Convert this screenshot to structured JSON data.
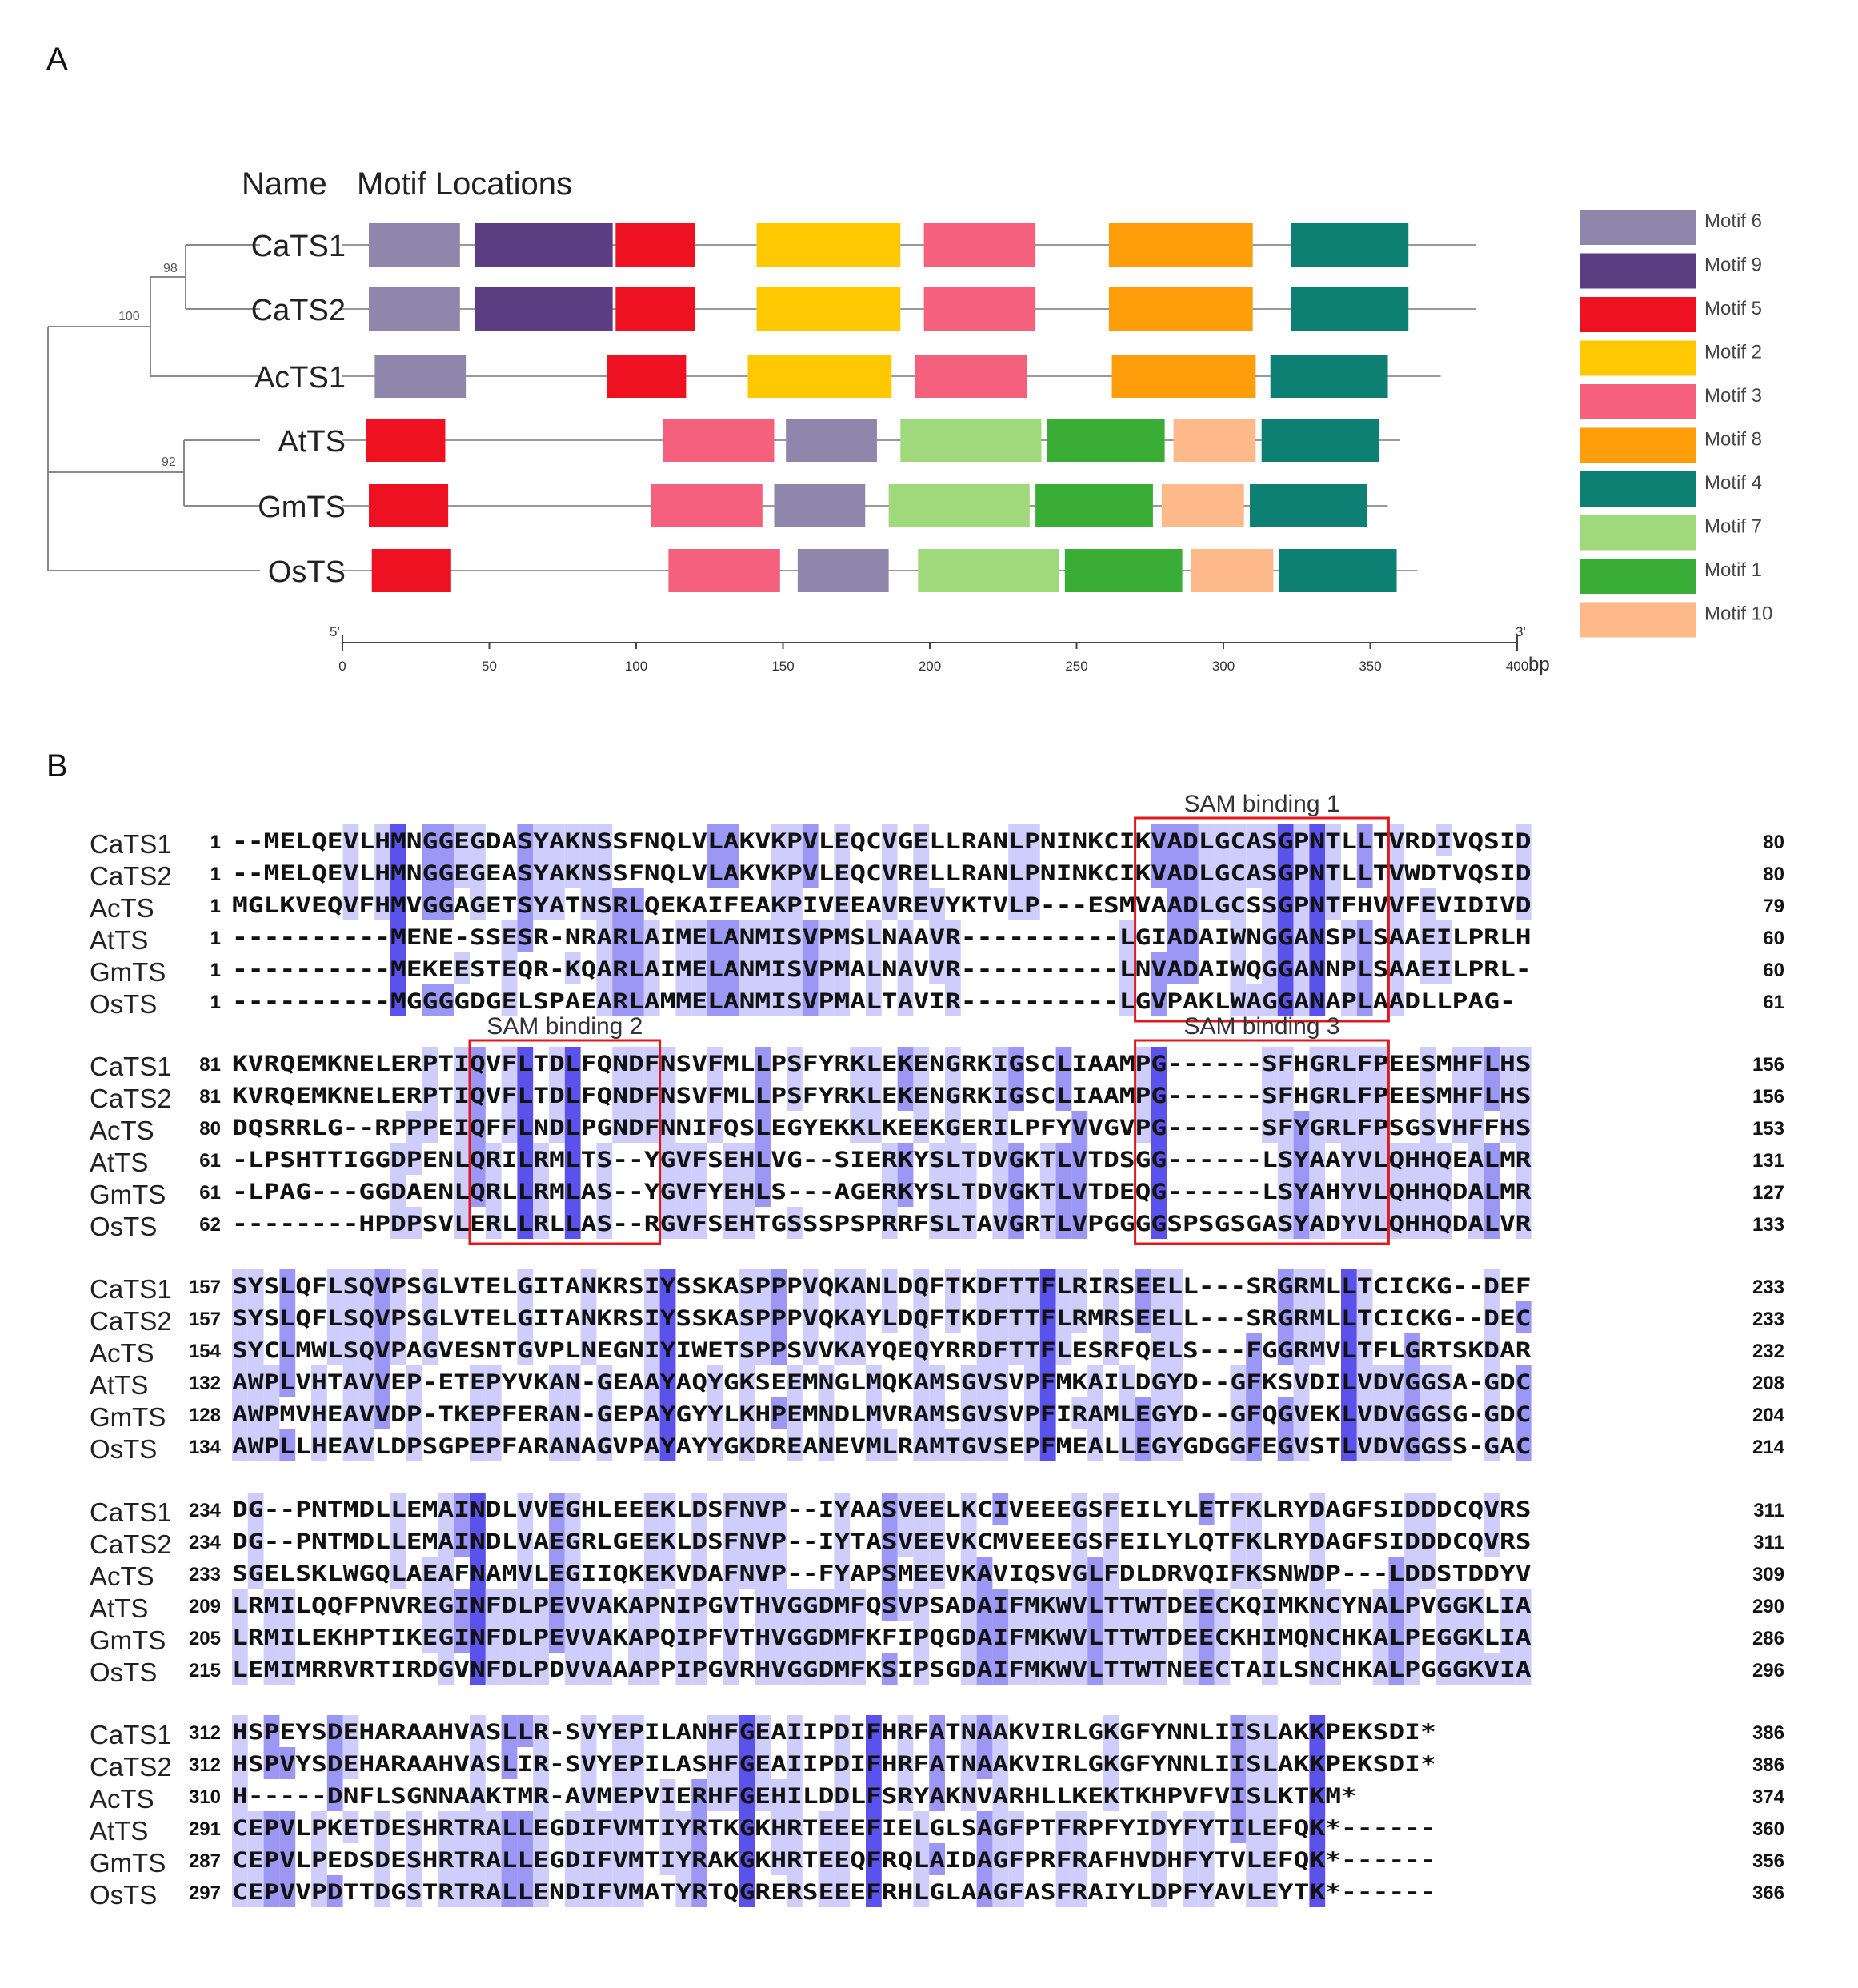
{
  "panel_a_label": "A",
  "panel_b_label": "B",
  "motif_table": {
    "header_name": "Name",
    "header_locations": "Motif Locations",
    "axis_ticks": [
      "0",
      "50",
      "100",
      "150",
      "200",
      "250",
      "300",
      "350",
      "400"
    ],
    "axis_unit": "bp",
    "axis_start_label": "5'",
    "axis_end_label": "3'",
    "bootstrap_values": [
      "98",
      "100",
      "92"
    ],
    "motif_colors": {
      "Motif 6": "#8e87ab",
      "Motif 9": "#5b3d82",
      "Motif 5": "#ee1122",
      "Motif 2": "#ffc800",
      "Motif 3": "#f5607d",
      "Motif 8": "#ff9d0a",
      "Motif 4": "#0e7f73",
      "Motif 7": "#9fd97c",
      "Motif 1": "#3aad37",
      "Motif 10": "#fdb98a"
    },
    "legend": [
      "Motif 6",
      "Motif 9",
      "Motif 5",
      "Motif 2",
      "Motif 3",
      "Motif 8",
      "Motif 4",
      "Motif 7",
      "Motif 1",
      "Motif 10"
    ],
    "proteins": [
      {
        "name": "CaTS1",
        "length": 386,
        "motifs": [
          {
            "motif": "Motif 6",
            "start": 9,
            "end": 40
          },
          {
            "motif": "Motif 9",
            "start": 45,
            "end": 92
          },
          {
            "motif": "Motif 5",
            "start": 93,
            "end": 120
          },
          {
            "motif": "Motif 2",
            "start": 141,
            "end": 190
          },
          {
            "motif": "Motif 3",
            "start": 198,
            "end": 236
          },
          {
            "motif": "Motif 8",
            "start": 261,
            "end": 310
          },
          {
            "motif": "Motif 4",
            "start": 323,
            "end": 363
          }
        ]
      },
      {
        "name": "CaTS2",
        "length": 386,
        "motifs": [
          {
            "motif": "Motif 6",
            "start": 9,
            "end": 40
          },
          {
            "motif": "Motif 9",
            "start": 45,
            "end": 92
          },
          {
            "motif": "Motif 5",
            "start": 93,
            "end": 120
          },
          {
            "motif": "Motif 2",
            "start": 141,
            "end": 190
          },
          {
            "motif": "Motif 3",
            "start": 198,
            "end": 236
          },
          {
            "motif": "Motif 8",
            "start": 261,
            "end": 310
          },
          {
            "motif": "Motif 4",
            "start": 323,
            "end": 363
          }
        ]
      },
      {
        "name": "AcTS1",
        "length": 374,
        "motifs": [
          {
            "motif": "Motif 6",
            "start": 11,
            "end": 42
          },
          {
            "motif": "Motif 5",
            "start": 90,
            "end": 117
          },
          {
            "motif": "Motif 2",
            "start": 138,
            "end": 187
          },
          {
            "motif": "Motif 3",
            "start": 195,
            "end": 233
          },
          {
            "motif": "Motif 8",
            "start": 262,
            "end": 311
          },
          {
            "motif": "Motif 4",
            "start": 316,
            "end": 356
          }
        ]
      },
      {
        "name": "AtTS",
        "length": 360,
        "motifs": [
          {
            "motif": "Motif 5",
            "start": 8,
            "end": 35
          },
          {
            "motif": "Motif 3",
            "start": 109,
            "end": 147
          },
          {
            "motif": "Motif 6",
            "start": 151,
            "end": 182
          },
          {
            "motif": "Motif 7",
            "start": 190,
            "end": 238
          },
          {
            "motif": "Motif 1",
            "start": 240,
            "end": 280
          },
          {
            "motif": "Motif 10",
            "start": 283,
            "end": 311
          },
          {
            "motif": "Motif 4",
            "start": 313,
            "end": 353
          }
        ]
      },
      {
        "name": "GmTS",
        "length": 356,
        "motifs": [
          {
            "motif": "Motif 5",
            "start": 9,
            "end": 36
          },
          {
            "motif": "Motif 3",
            "start": 105,
            "end": 143
          },
          {
            "motif": "Motif 6",
            "start": 147,
            "end": 178
          },
          {
            "motif": "Motif 7",
            "start": 186,
            "end": 234
          },
          {
            "motif": "Motif 1",
            "start": 236,
            "end": 276
          },
          {
            "motif": "Motif 10",
            "start": 279,
            "end": 307
          },
          {
            "motif": "Motif 4",
            "start": 309,
            "end": 349
          }
        ]
      },
      {
        "name": "OsTS",
        "length": 366,
        "motifs": [
          {
            "motif": "Motif 5",
            "start": 10,
            "end": 37
          },
          {
            "motif": "Motif 3",
            "start": 111,
            "end": 149
          },
          {
            "motif": "Motif 6",
            "start": 155,
            "end": 186
          },
          {
            "motif": "Motif 7",
            "start": 196,
            "end": 244
          },
          {
            "motif": "Motif 1",
            "start": 246,
            "end": 286
          },
          {
            "motif": "Motif 10",
            "start": 289,
            "end": 317
          },
          {
            "motif": "Motif 4",
            "start": 319,
            "end": 359
          }
        ]
      }
    ]
  },
  "alignment": {
    "names": [
      "CaTS1",
      "CaTS2",
      "AcTS",
      "AtTS",
      "GmTS",
      "OsTS"
    ],
    "blocks": [
      {
        "start": [
          "1",
          "1",
          "1",
          "1",
          "1",
          "1"
        ],
        "end": [
          "80",
          "80",
          "79",
          "60",
          "60",
          "61"
        ],
        "seq": [
          "--MELQEVLHMNGGEGDASYAKNSSFNQLVLAKVKPVLEQCVGELLRANLPNINKCIKVADLGCASGPNTLLTVRDIVQSID",
          "--MELQEVLHMNGGEGEASYAKNSSFNQLVLAKVKPVLEQCVRELLRANLPNINKCIKVADLGCASGPNTLLTVWDTVQSID",
          "MGLKVEQVFHMVGGAGETSYATNSRLQEKAIFEAKPIVEEAVREVYKTVLP---ESMVAADLGCSSGPNTFHVVFEVIDIVD",
          "----------MENE-SSESR-NRARLAIMELANMISVPMSLNAAVR----------LGIADAIWNGGANSPLSAAEILPRLH",
          "----------MEKEESTEQR-KQARLAIMELANMISVPMALNAVVR----------LNVADAIWQGGANNPLSAAEILPRL-",
          "----------MGGGGDGELSPAEARLAMMELANMISVPMALTAVIR----------LGVPAKLWAGGANAPLAADLLPAG-"
        ],
        "boxes": [
          {
            "label": "SAM binding 1",
            "from": 57,
            "to": 72
          }
        ]
      },
      {
        "start": [
          "81",
          "81",
          "80",
          "61",
          "61",
          "62"
        ],
        "end": [
          "156",
          "156",
          "153",
          "131",
          "127",
          "133"
        ],
        "seq": [
          "KVRQEMKNELERPTIQVFLTDLFQNDFNSVFMLLPSFYRKLEKENGRKIGSCLIAAMPG------SFHGRLFPEESMHFLHS",
          "KVRQEMKNELERPTIQVFLTDLFQNDFNSVFMLLPSFYRKLEKENGRKIGSCLIAAMPG------SFHGRLFPEESMHFLHS",
          "DQSRRLG--RPPPEIQFFLNDLPGNDFNNIFQSLEGYEKKLKEEKGERILPFYVVGVPG------SFYGRLFPSGSVHFFHS",
          "-LPSHTTIGGDPENLQRILRMLTS--YGVFSEHLVG--SIERKYSLTDVGKTLVTDSGG------LSYAAYVLQHHQEALMR",
          "-LPAG---GGDAENLQRLLRMLAS--YGVFYEHLS---AGERKYSLTDVGKTLVTDEQG------LSYAHYVLQHHQDALMR",
          "--------HPDPSVLERLLRLLAS--RGVFSEHTGSSSPSPRRFSLTAVGRTLVPGGGGSPSGSGASYADYVLQHHQDALVR"
        ],
        "boxes": [
          {
            "label": "SAM binding 2",
            "from": 15,
            "to": 26
          },
          {
            "label": "SAM binding 3",
            "from": 57,
            "to": 72
          }
        ]
      },
      {
        "start": [
          "157",
          "157",
          "154",
          "132",
          "128",
          "134"
        ],
        "end": [
          "233",
          "233",
          "232",
          "208",
          "204",
          "214"
        ],
        "seq": [
          "SYSLQFLSQVPSGLVTELGITANKRSIYSSKASPPPVQKANLDQFTKDFTTFLRIRSEELL---SRGRMLLTCICKG--DEF",
          "SYSLQFLSQVPSGLVTELGITANKRSIYSSKASPPPVQKAYLDQFTKDFTTFLRMRSEELL---SRGRMLLTCICKG--DEC",
          "SYCLMWLSQVPAGVESNTGVPLNEGNIYIWETSPPSVVKAYQEQYRRDFTTFLESRFQELS---FGGRMVLTFLGRTSKDAR",
          "AWPLVHTAVVEP-ETEPYVKAN-GEAAYAQYGKSEEMNGLMQKAMSGVSVPFMKAILDGYD--GFKSVDILVDVGGSA-GDC",
          "AWPMVHEAVVDP-TKEPFERAN-GEPAYGYYLKHPEMNDLMVRAMSGVSVPFIRAMLEGYD--GFQGVEKLVDVGGSG-GDC",
          "AWPLLHEAVLDPSGPEPFARANAGVPAYAYYGKDREANEVMLRAMTGVSEPFMEALLEGYGDGGFEGVSTLVDVGGSS-GAC"
        ],
        "boxes": []
      },
      {
        "start": [
          "234",
          "234",
          "233",
          "209",
          "205",
          "215"
        ],
        "end": [
          "311",
          "311",
          "309",
          "290",
          "286",
          "296"
        ],
        "seq": [
          "DG--PNTMDLLEMAINDLVVEGHLEEEKLDSFNVP--IYAASVEELKCIVEEEGSFEILYLETFKLRYDAGFSIDDDCQVRS",
          "DG--PNTMDLLEMAINDLVAEGRLGEEKLDSFNVP--IYTASVEEVKCMVEEEGSFEILYLQTFKLRYDAGFSIDDDCQVRS",
          "SGELSKLWGQLAEAFNAMVLEGIIQKEKVDAFNVP--FYAPSMEEVKAVIQSVGLFDLDRVQIFKSNWDP---LDDSTDDYV",
          "LRMILQQFPNVREGINFDLPEVVAKAPNIPGVTHVGGDMFQSVPSADAIFMKWVLTTWTDEECKQIMKNCYNALPVGGKLIA",
          "LRMILEKHPTIKEGINFDLPEVVAKAPQIPFVTHVGGDMFKFIPQGDAIFMKWVLTTWTDEECKHIMQNCHKALPEGGKLIA",
          "LEMIMRRVRTIRDGVNFDLPDVVAAAPPIPGVRHVGGDMFKSIPSGDAIFMKWVLTTWTNEECTAILSNCHKALPGGGKVIA"
        ],
        "boxes": []
      },
      {
        "start": [
          "312",
          "312",
          "310",
          "291",
          "287",
          "297"
        ],
        "end": [
          "386",
          "386",
          "374",
          "360",
          "356",
          "366"
        ],
        "seq": [
          "HSPEYSDEHARAAHVASLLR-SVYEPILANHFGEAIIPDIFHRFATNAAKVIRLGKGFYNNLIISLAKKPEKSDI*",
          "HSPVYSDEHARAAHVASLIR-SVYEPILASHFGEAIIPDIFHRFATNAAKVIRLGKGFYNNLIISLAKKPEKSDI*",
          "H-----DNFLSGNNAAKTMR-AVMEPVIERHFGEHILDDLFSRYAKNVARHLLKEKTKHPVFVISLKTKM*",
          "CEPVLPKETDESHRTRALLEGDIFVMTIYRTKGKHRTEEEFIELGLSAGFPTFRPFYIDYFYTILEFQK*------",
          "CEPVLPEDSDESHRTRALLEGDIFVMTIYRAKGKHRTEEQFRQLAIDAGFPRFRAFHVDHFYTVLEFQK*------",
          "CEPVVPDTTDGSTRTRALLENDIFVMATYRTQGRERSEEEFRHLGLAAGFASFRAIYLDPFYAVLEYTK*------"
        ],
        "boxes": []
      }
    ]
  }
}
